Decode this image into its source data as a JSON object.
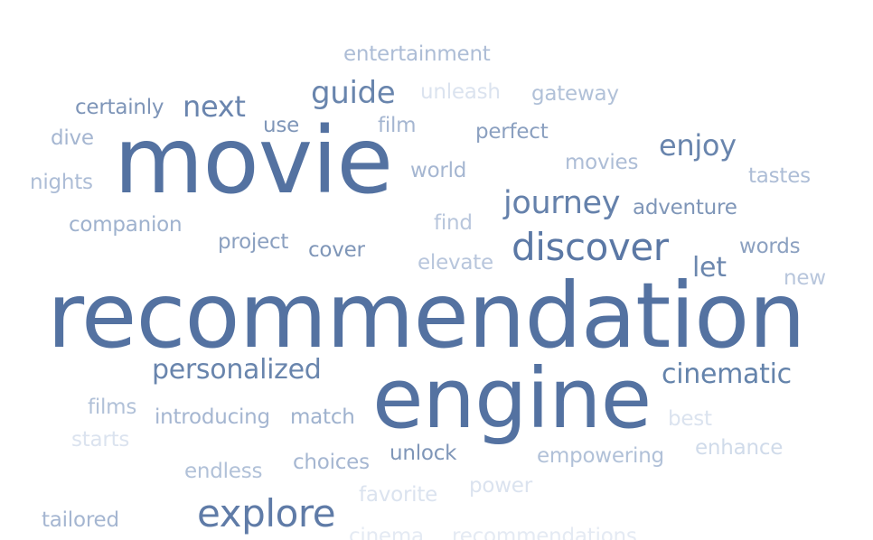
{
  "words": [
    {
      "text": "recommendation",
      "color": "#5472a1"
    },
    {
      "text": "movie",
      "color": "#5472a1"
    },
    {
      "text": "engine",
      "color": "#5472a1"
    },
    {
      "text": "discover",
      "color": "#5b78a5"
    },
    {
      "text": "explore",
      "color": "#5f7ba7"
    },
    {
      "text": "journey",
      "color": "#6581ab"
    },
    {
      "text": "guide",
      "color": "#6985ad"
    },
    {
      "text": "personalized",
      "color": "#6985ad"
    },
    {
      "text": "cinematic",
      "color": "#6483ab"
    },
    {
      "text": "next",
      "color": "#6a85ae"
    },
    {
      "text": "enjoy",
      "color": "#6985ad"
    },
    {
      "text": "let",
      "color": "#6c87ae"
    },
    {
      "text": "entertainment",
      "color": "#adbdd6"
    },
    {
      "text": "unleash",
      "color": "#dbe3ef"
    },
    {
      "text": "gateway",
      "color": "#b1c1d8"
    },
    {
      "text": "certainly",
      "color": "#7e95b8"
    },
    {
      "text": "use",
      "color": "#7f96b8"
    },
    {
      "text": "film",
      "color": "#a5b6d1"
    },
    {
      "text": "perfect",
      "color": "#8ba0c0"
    },
    {
      "text": "dive",
      "color": "#a5b6d1"
    },
    {
      "text": "movies",
      "color": "#adbdd6"
    },
    {
      "text": "tastes",
      "color": "#adbdd6"
    },
    {
      "text": "nights",
      "color": "#adbdd6"
    },
    {
      "text": "world",
      "color": "#a5b6d1"
    },
    {
      "text": "companion",
      "color": "#9fb2ce"
    },
    {
      "text": "find",
      "color": "#b8c6dc"
    },
    {
      "text": "adventure",
      "color": "#7f96b8"
    },
    {
      "text": "project",
      "color": "#8ba0c0"
    },
    {
      "text": "cover",
      "color": "#7f96b8"
    },
    {
      "text": "elevate",
      "color": "#b8c6dc"
    },
    {
      "text": "words",
      "color": "#8ba0c0"
    },
    {
      "text": "new",
      "color": "#b8c6dc"
    },
    {
      "text": "films",
      "color": "#b1c1d8"
    },
    {
      "text": "introducing",
      "color": "#a5b6d1"
    },
    {
      "text": "match",
      "color": "#9fb2ce"
    },
    {
      "text": "best",
      "color": "#dbe3ef"
    },
    {
      "text": "starts",
      "color": "#dbe3ef"
    },
    {
      "text": "enhance",
      "color": "#d0dbea"
    },
    {
      "text": "endless",
      "color": "#b1c1d8"
    },
    {
      "text": "choices",
      "color": "#a5b6d1"
    },
    {
      "text": "unlock",
      "color": "#7f96b8"
    },
    {
      "text": "empowering",
      "color": "#b1c1d8"
    },
    {
      "text": "favorite",
      "color": "#dbe3ef"
    },
    {
      "text": "power",
      "color": "#dbe3ef"
    },
    {
      "text": "tailored",
      "color": "#a5b6d1"
    },
    {
      "text": "cinema",
      "color": "#e4eaf3"
    },
    {
      "text": "recommendations",
      "color": "#e4eaf3"
    }
  ]
}
